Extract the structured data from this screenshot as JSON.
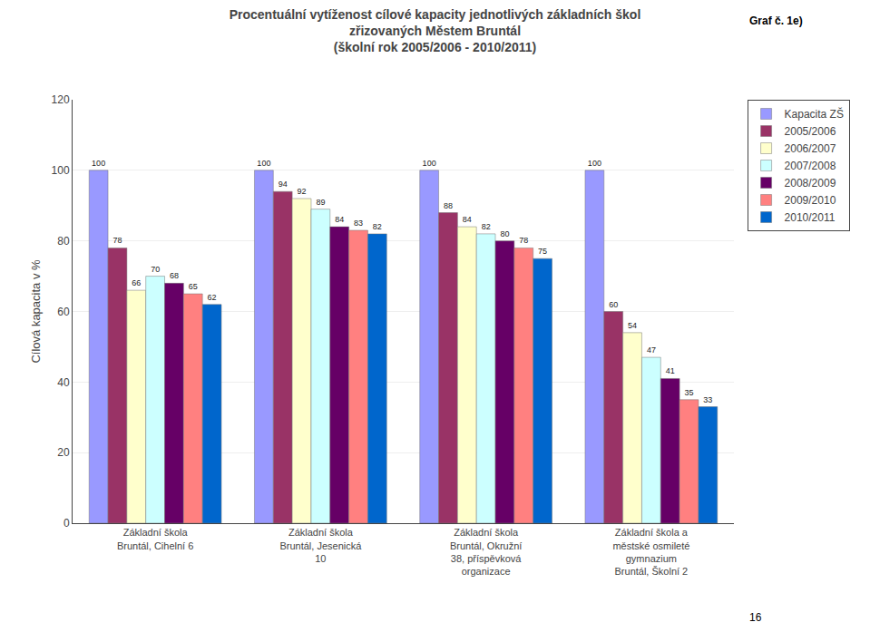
{
  "chart_data": {
    "type": "bar",
    "title": "Procentuální vytíženost cílové kapacity jednotlivých základních škol\nzřizovaných Městem Bruntál\n(školní rok 2005/2006 - 2010/2011)",
    "annotations": [
      "Graf č. 1e)",
      "16"
    ],
    "ylabel": "Cílová kapacita v %",
    "categories": [
      "Základní škola\nBruntál, Cihelní 6",
      "Základní škola\nBruntál, Jesenická\n10",
      "Základní škola\nBruntál, Okružní\n38, příspěvková\norganizace",
      "Základní škola a\nměstské osmileté\ngymnazium\nBruntál, Školní 2"
    ],
    "series": [
      {
        "name": "Kapacita ZŠ",
        "color": "#9999FF",
        "values": [
          100,
          100,
          100,
          100
        ]
      },
      {
        "name": "2005/2006",
        "color": "#993366",
        "values": [
          78,
          94,
          88,
          60
        ]
      },
      {
        "name": "2006/2007",
        "color": "#FFFFCC",
        "values": [
          66,
          92,
          84,
          54
        ]
      },
      {
        "name": "2007/2008",
        "color": "#CCFFFF",
        "values": [
          70,
          89,
          82,
          47
        ]
      },
      {
        "name": "2008/2009",
        "color": "#660066",
        "values": [
          68,
          84,
          80,
          41
        ]
      },
      {
        "name": "2009/2010",
        "color": "#FF8080",
        "values": [
          65,
          83,
          78,
          35
        ]
      },
      {
        "name": "2010/2011",
        "color": "#0066CC",
        "values": [
          62,
          82,
          75,
          33
        ]
      }
    ],
    "ylim": [
      0,
      120
    ],
    "yticks": [
      0,
      20,
      40,
      60,
      80,
      100,
      120
    ],
    "grid": true,
    "data_labels": true,
    "legend": "right"
  }
}
